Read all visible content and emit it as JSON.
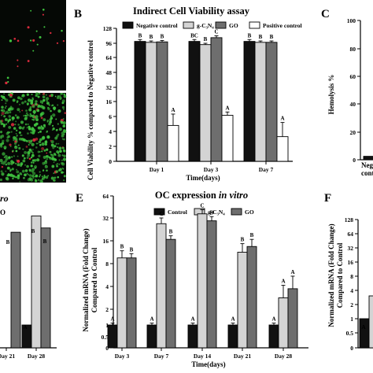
{
  "panels": {
    "B": {
      "letter": "B"
    },
    "C": {
      "letter": "C"
    },
    "E": {
      "letter": "E"
    },
    "F": {
      "letter": "F"
    }
  },
  "partial_labels": {
    "left_title_fragment": "ro",
    "left_legend_fragment": "O",
    "c_xlabel_line1": "Neg",
    "c_xlabel_line2": "cont",
    "f_yaxis_line1": "Normalized mRNA (Fold Change)",
    "f_yaxis_line2": "Compared to Control",
    "f_letter_a": "A"
  },
  "colors": {
    "negative_control": "#111111",
    "g_c3n4": "#d4d4d4",
    "go": "#6e6e6e",
    "positive_control": "#ffffff",
    "micrograph_bg": "#050805",
    "cell_green": "#3fc23f",
    "cell_red": "#d62a3c"
  },
  "chart_data": [
    {
      "panel": "B",
      "type": "bar",
      "title": "Indirect Cell Viability assay",
      "xlabel": "Time(days)",
      "ylabel": "Cell Viability % compared to Negative control",
      "yscale": "log2",
      "ylim": [
        0,
        128
      ],
      "yticks": [
        "0",
        "2",
        "4",
        "6",
        "16",
        "32",
        "48",
        "64",
        "96",
        "128"
      ],
      "legend_position": "top",
      "categories": [
        "Day 1",
        "Day 3",
        "Day 7"
      ],
      "series": [
        {
          "name": "Negative control",
          "values": [
            100,
            100,
            100
          ],
          "errors": [
            4,
            4,
            4
          ],
          "letters": [
            "B",
            "BC",
            "B"
          ]
        },
        {
          "name": "g-C₃N₄",
          "values": [
            98,
            93,
            98
          ],
          "errors": [
            3,
            3,
            3
          ],
          "letters": [
            "B",
            "B",
            "B"
          ]
        },
        {
          "name": "GO",
          "values": [
            99,
            108,
            98
          ],
          "errors": [
            3,
            4,
            3
          ],
          "letters": [
            "B",
            "C",
            "B"
          ]
        },
        {
          "name": "Positive control",
          "values": [
            4.8,
            6.8,
            3.3
          ],
          "errors": [
            2.8,
            2.2,
            1.9
          ],
          "letters": [
            "A",
            "A",
            "A"
          ]
        }
      ]
    },
    {
      "panel": "C",
      "type": "bar",
      "ylabel": "Hemolysis %",
      "ylim": [
        0,
        100
      ],
      "yticks": [
        "0",
        "20",
        "40",
        "60",
        "80",
        "100"
      ],
      "categories": [
        "Neg cont"
      ],
      "values": [
        2.5
      ]
    },
    {
      "panel": "E",
      "type": "bar",
      "title": "OC expression ",
      "title_italic": "in vitro",
      "xlabel": "Time(days)",
      "ylabel": "Normalized mRNA (Fold Change) Compared to Control",
      "yscale": "log2",
      "ylim": [
        0,
        64
      ],
      "yticks": [
        "0",
        "0.5",
        "1",
        "2",
        "4",
        "8",
        "16",
        "32",
        "64"
      ],
      "legend_position": "top",
      "categories": [
        "Day 3",
        "Day 7",
        "Day 14",
        "Day 21",
        "Day 28"
      ],
      "series": [
        {
          "name": "Control",
          "values": [
            1,
            1,
            1,
            1,
            1
          ],
          "errors": [
            0.12,
            0.12,
            0.12,
            0.12,
            0.12
          ],
          "letters": [
            "A",
            "A",
            "A",
            "A",
            "A"
          ]
        },
        {
          "name": "g-C₃N₄",
          "values": [
            10,
            28,
            38,
            12,
            3
          ],
          "errors": [
            2.5,
            4,
            6,
            3,
            1.2
          ],
          "letters": [
            "B",
            "C",
            "C",
            "B",
            "A"
          ]
        },
        {
          "name": "GO",
          "values": [
            10,
            17,
            30,
            14,
            3.8
          ],
          "errors": [
            1.5,
            2.5,
            4,
            3,
            2
          ],
          "letters": [
            "B",
            "B",
            "B",
            "B",
            "A"
          ]
        }
      ]
    },
    {
      "panel": "left-partial",
      "type": "bar",
      "categories": [
        "Day 21",
        "Day 28"
      ],
      "series": [
        {
          "name": "Control",
          "values": [
            null,
            1
          ]
        },
        {
          "name": "g-C₃N₄",
          "values": [
            null,
            35
          ]
        },
        {
          "name": "GO",
          "values": [
            22,
            25
          ]
        }
      ],
      "letters": [
        "B",
        "A",
        "B",
        "B"
      ]
    },
    {
      "panel": "F",
      "type": "bar",
      "ylabel": "Normalized mRNA (Fold Change) Compared to Control",
      "yscale": "log2",
      "yticks": [
        "0",
        "0.5",
        "1",
        "2",
        "4",
        "8",
        "16",
        "32",
        "64",
        "128"
      ],
      "values": [
        1
      ]
    }
  ]
}
